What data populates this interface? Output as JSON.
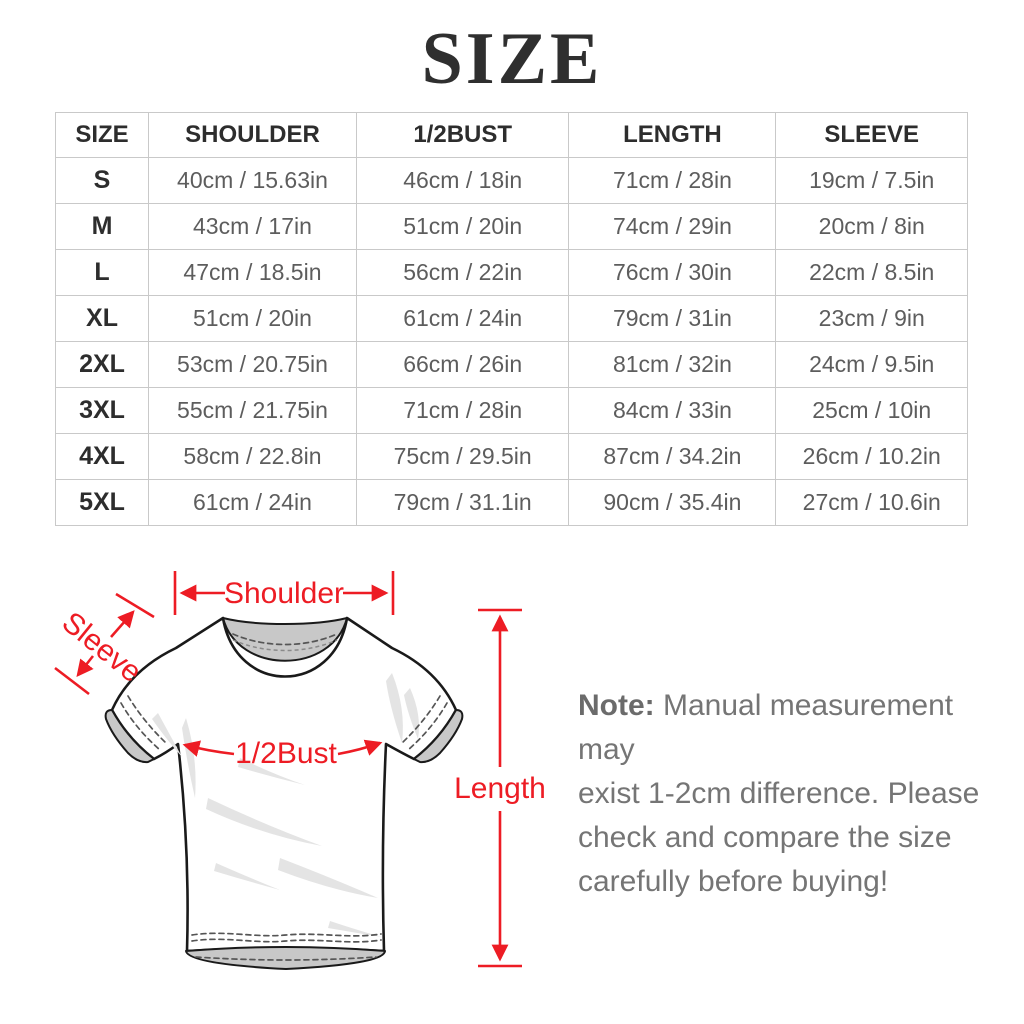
{
  "title": "SIZE",
  "table": {
    "columns": [
      "SIZE",
      "SHOULDER",
      "1/2BUST",
      "LENGTH",
      "SLEEVE"
    ],
    "rows": [
      {
        "size": "S",
        "values": [
          "40cm / 15.63in",
          "46cm / 18in",
          "71cm / 28in",
          "19cm / 7.5in"
        ]
      },
      {
        "size": "M",
        "values": [
          "43cm / 17in",
          "51cm / 20in",
          "74cm / 29in",
          "20cm / 8in"
        ]
      },
      {
        "size": "L",
        "values": [
          "47cm / 18.5in",
          "56cm / 22in",
          "76cm / 30in",
          "22cm / 8.5in"
        ]
      },
      {
        "size": "XL",
        "values": [
          "51cm / 20in",
          "61cm / 24in",
          "79cm / 31in",
          "23cm / 9in"
        ]
      },
      {
        "size": "2XL",
        "values": [
          "53cm / 20.75in",
          "66cm / 26in",
          "81cm / 32in",
          "24cm / 9.5in"
        ]
      },
      {
        "size": "3XL",
        "values": [
          "55cm / 21.75in",
          "71cm / 28in",
          "84cm / 33in",
          "25cm / 10in"
        ]
      },
      {
        "size": "4XL",
        "values": [
          "58cm / 22.8in",
          "75cm / 29.5in",
          "87cm / 34.2in",
          "26cm / 10.2in"
        ]
      },
      {
        "size": "5XL",
        "values": [
          "61cm / 24in",
          "79cm / 31.1in",
          "90cm / 35.4in",
          "27cm / 10.6in"
        ]
      }
    ]
  },
  "diagram": {
    "labels": {
      "shoulder": "Shoulder",
      "sleeve": "Sleeve",
      "bust": "1/2Bust",
      "length": "Length"
    }
  },
  "note": {
    "prefix": "Note:",
    "line1": " Manual measurement may",
    "line2": "exist 1-2cm difference. Please",
    "line3": "check and compare the size",
    "line4": "carefully before buying!"
  },
  "colors": {
    "accent_red": "#ED1C24",
    "heading_text": "#2d2d2d",
    "cell_text": "#5d5d5d",
    "note_text": "#757575",
    "table_border": "#c9c9c9",
    "shirt_gray": "#c8c8c8"
  }
}
